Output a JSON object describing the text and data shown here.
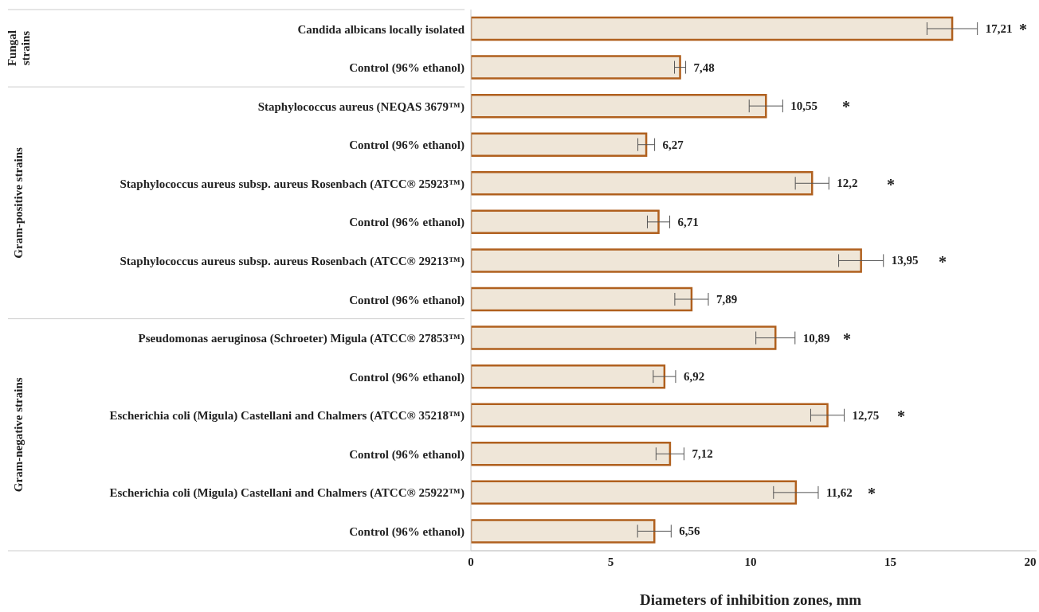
{
  "chart_data": {
    "type": "bar",
    "orientation": "horizontal",
    "xlabel": "Diameters of inhibition zones, mm",
    "categories": [
      "Candida albicans locally isolated",
      "Control (96% ethanol)",
      "Staphylococcus aureus (NEQAS 3679™)",
      "Control (96% ethanol)",
      "Staphylococcus aureus subsp. aureus Rosenbach (ATCC® 25923™)",
      "Control (96% ethanol)",
      "Staphylococcus aureus subsp. aureus Rosenbach (ATCC® 29213™)",
      "Control (96% ethanol)",
      "Pseudomonas aeruginosa (Schroeter) Migula (ATCC® 27853™)",
      "Control (96% ethanol)",
      "Escherichia coli (Migula) Castellani and Chalmers (ATCC® 35218™)",
      "Control (96% ethanol)",
      "Escherichia coli (Migula) Castellani and Chalmers (ATCC® 25922™)",
      "Control (96% ethanol)"
    ],
    "values": [
      17.21,
      7.48,
      10.55,
      6.27,
      12.2,
      6.71,
      13.95,
      7.89,
      10.89,
      6.92,
      12.75,
      7.12,
      11.62,
      6.56
    ],
    "errors": [
      0.9,
      0.2,
      0.6,
      0.3,
      0.6,
      0.4,
      0.8,
      0.6,
      0.7,
      0.4,
      0.6,
      0.5,
      0.8,
      0.6
    ],
    "value_labels": [
      "17,21",
      "7,48",
      "10,55",
      "6,27",
      "12,2",
      "6,71",
      "13,95",
      "7,89",
      "10,89",
      "6,92",
      "12,75",
      "7,12",
      "11,62",
      "6,56"
    ],
    "color": "#efe6d8",
    "xlim": [
      0,
      20
    ],
    "xticks": [
      0,
      5,
      10,
      15,
      20
    ],
    "annotations": [
      "*",
      "*",
      "*",
      "*",
      "*",
      "*",
      "*",
      "Fungal strains",
      "Gram-positive strains",
      "Gram-negative strains"
    ]
  }
}
